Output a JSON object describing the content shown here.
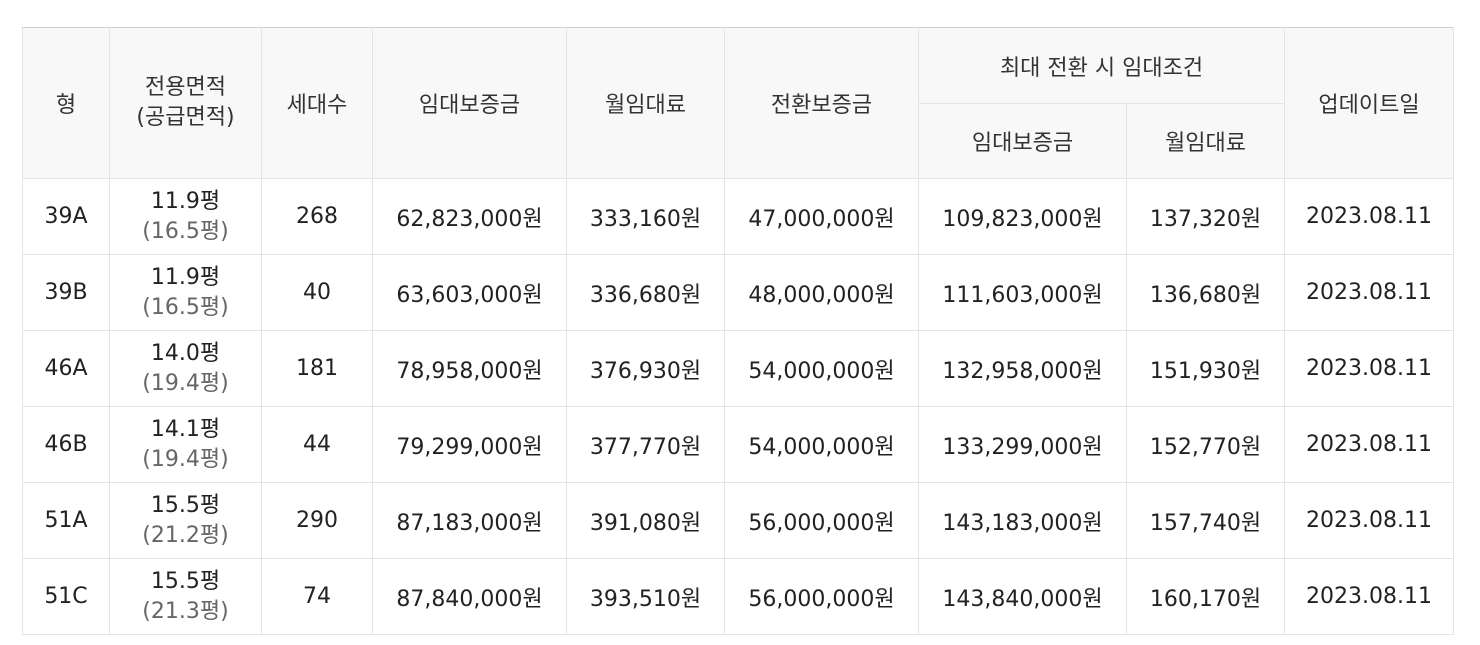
{
  "columns": {
    "type": "형",
    "area_line1": "전용면적",
    "area_line2": "(공급면적)",
    "households": "세대수",
    "deposit": "임대보증금",
    "monthly_rent": "월임대료",
    "conversion_deposit": "전환보증금",
    "max_conversion_group": "최대 전환 시 임대조건",
    "max_deposit": "임대보증금",
    "max_monthly_rent": "월임대료",
    "updated": "업데이트일"
  },
  "rows": [
    {
      "type": "39A",
      "area": "11.9평",
      "supply_area": "(16.5평)",
      "households": "268",
      "deposit": "62,823,000원",
      "monthly_rent": "333,160원",
      "conversion_deposit": "47,000,000원",
      "max_deposit": "109,823,000원",
      "max_monthly_rent": "137,320원",
      "updated": "2023.08.11"
    },
    {
      "type": "39B",
      "area": "11.9평",
      "supply_area": "(16.5평)",
      "households": "40",
      "deposit": "63,603,000원",
      "monthly_rent": "336,680원",
      "conversion_deposit": "48,000,000원",
      "max_deposit": "111,603,000원",
      "max_monthly_rent": "136,680원",
      "updated": "2023.08.11"
    },
    {
      "type": "46A",
      "area": "14.0평",
      "supply_area": "(19.4평)",
      "households": "181",
      "deposit": "78,958,000원",
      "monthly_rent": "376,930원",
      "conversion_deposit": "54,000,000원",
      "max_deposit": "132,958,000원",
      "max_monthly_rent": "151,930원",
      "updated": "2023.08.11"
    },
    {
      "type": "46B",
      "area": "14.1평",
      "supply_area": "(19.4평)",
      "households": "44",
      "deposit": "79,299,000원",
      "monthly_rent": "377,770원",
      "conversion_deposit": "54,000,000원",
      "max_deposit": "133,299,000원",
      "max_monthly_rent": "152,770원",
      "updated": "2023.08.11"
    },
    {
      "type": "51A",
      "area": "15.5평",
      "supply_area": "(21.2평)",
      "households": "290",
      "deposit": "87,183,000원",
      "monthly_rent": "391,080원",
      "conversion_deposit": "56,000,000원",
      "max_deposit": "143,183,000원",
      "max_monthly_rent": "157,740원",
      "updated": "2023.08.11"
    },
    {
      "type": "51C",
      "area": "15.5평",
      "supply_area": "(21.3평)",
      "households": "74",
      "deposit": "87,840,000원",
      "monthly_rent": "393,510원",
      "conversion_deposit": "56,000,000원",
      "max_deposit": "143,840,000원",
      "max_monthly_rent": "160,170원",
      "updated": "2023.08.11"
    }
  ],
  "colors": {
    "header_bg": "#f8f8f8",
    "border": "#e4e4e4",
    "text": "#222222",
    "subtext": "#666666"
  }
}
